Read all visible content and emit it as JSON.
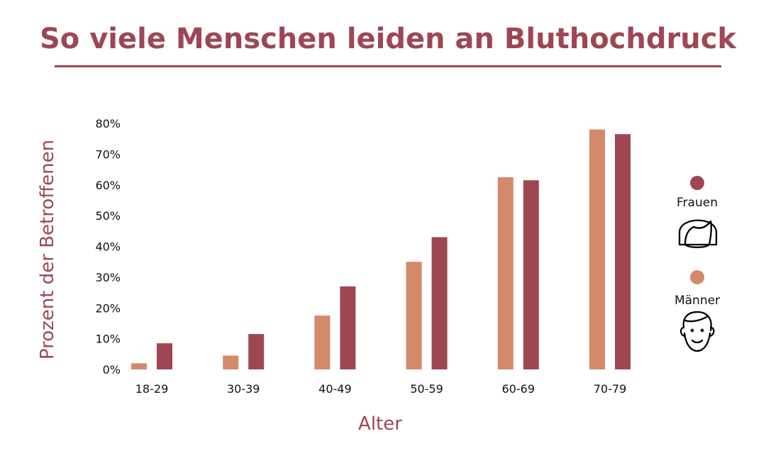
{
  "chart_data": {
    "type": "bar",
    "title": "So viele Menschen leiden an Bluthochdruck",
    "xlabel": "Alter",
    "ylabel": "Prozent der Betroffenen",
    "categories": [
      "18-29",
      "30-39",
      "40-49",
      "50-59",
      "60-69",
      "70-79"
    ],
    "series": [
      {
        "name": "Männer",
        "color": "#d4896a",
        "values": [
          2,
          4.5,
          17.5,
          35,
          62.5,
          78
        ]
      },
      {
        "name": "Frauen",
        "color": "#9e4753",
        "values": [
          8.5,
          11.5,
          27,
          43,
          61.5,
          76.5
        ]
      }
    ],
    "ylim": [
      0,
      80
    ],
    "yticks": [
      "0%",
      "10%",
      "20%",
      "30%",
      "40%",
      "50%",
      "60%",
      "70%",
      "80%"
    ],
    "grid": false,
    "legend": {
      "placement": "right",
      "items": [
        {
          "label": "Frauen",
          "color": "#9e4753",
          "icon": "woman-face-icon"
        },
        {
          "label": "Männer",
          "color": "#d4896a",
          "icon": "man-face-icon"
        }
      ]
    }
  }
}
